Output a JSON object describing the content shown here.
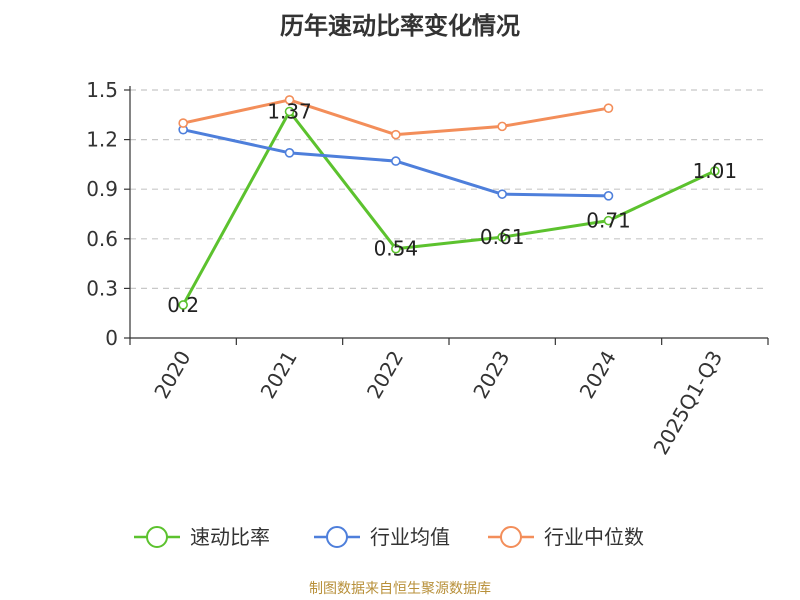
{
  "chart_data": {
    "type": "line",
    "title": "历年速动比率变化情况",
    "categories": [
      "2020",
      "2021",
      "2022",
      "2023",
      "2024",
      "2025Q1-Q3"
    ],
    "ylim": [
      0,
      1.5
    ],
    "yticks": [
      "0",
      "0.3",
      "0.6",
      "0.9",
      "1.2",
      "1.5"
    ],
    "grid": true,
    "legend_position": "bottom",
    "series": [
      {
        "name": "速动比率",
        "color": "#5cc22e",
        "values": [
          0.2,
          1.37,
          0.54,
          0.61,
          0.71,
          1.01
        ],
        "labels": [
          "0.2",
          "1.37",
          "0.54",
          "0.61",
          "0.71",
          "1.01"
        ]
      },
      {
        "name": "行业均值",
        "color": "#4e7fdb",
        "values": [
          1.26,
          1.12,
          1.07,
          0.87,
          0.86,
          null
        ]
      },
      {
        "name": "行业中位数",
        "color": "#f38e5a",
        "values": [
          1.3,
          1.44,
          1.23,
          1.28,
          1.39,
          null
        ]
      }
    ]
  },
  "source": "制图数据来自恒生聚源数据库"
}
